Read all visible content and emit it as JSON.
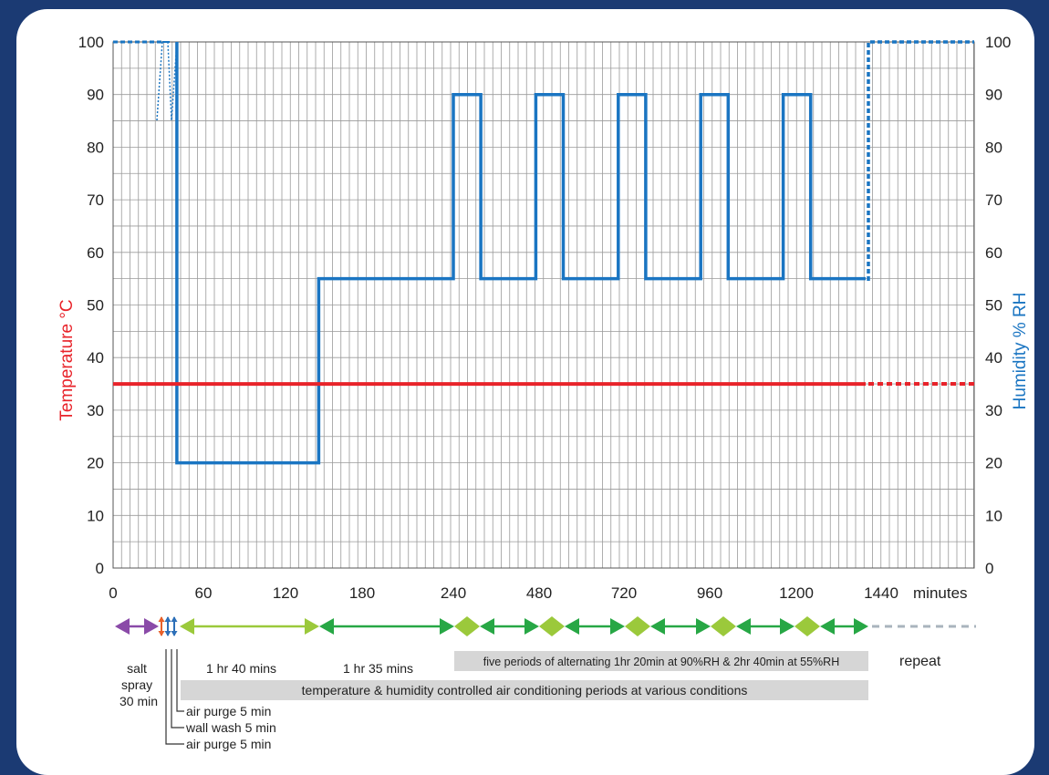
{
  "chart_data": {
    "type": "line",
    "ylabel_left": "Temperature °C",
    "ylabel_right": "Humidity % RH",
    "xlabel": "minutes",
    "x_tick_labels": [
      "0",
      "60",
      "120",
      "180",
      "240",
      "480",
      "720",
      "960",
      "1200",
      "1440"
    ],
    "y_ticks": [
      0,
      10,
      20,
      30,
      40,
      50,
      60,
      70,
      80,
      90,
      100
    ],
    "ylim": [
      0,
      100
    ],
    "series": [
      {
        "name": "Humidity % RH",
        "color": "#1a75c2",
        "style": "solid",
        "points": [
          [
            45,
            100
          ],
          [
            45,
            20
          ],
          [
            145,
            20
          ],
          [
            145,
            55
          ],
          [
            240,
            55
          ],
          [
            240,
            90
          ],
          [
            320,
            90
          ],
          [
            320,
            55
          ],
          [
            480,
            55
          ],
          [
            480,
            90
          ],
          [
            560,
            90
          ],
          [
            560,
            55
          ],
          [
            720,
            55
          ],
          [
            720,
            90
          ],
          [
            800,
            90
          ],
          [
            800,
            55
          ],
          [
            960,
            55
          ],
          [
            960,
            90
          ],
          [
            1040,
            90
          ],
          [
            1040,
            55
          ],
          [
            1200,
            55
          ],
          [
            1200,
            90
          ],
          [
            1280,
            90
          ],
          [
            1280,
            55
          ],
          [
            1440,
            55
          ]
        ]
      },
      {
        "name": "Temperature °C",
        "color": "#e8232a",
        "style": "solid",
        "points": [
          [
            0,
            35
          ],
          [
            1440,
            35
          ]
        ]
      }
    ],
    "grid": true
  },
  "phases": {
    "salt_spray": "salt\nspray\n30 min",
    "phase_1": "1 hr 40 mins",
    "phase_2": "1 hr 35 mins",
    "five_periods": "five periods of alternating 1hr 20min at 90%RH & 2hr 40min at 55%RH",
    "repeat": "repeat",
    "controlled_periods": "temperature & humidity controlled air conditioning periods at various conditions",
    "air_purge_1": "air purge 5 min",
    "wall_wash": "wall wash 5 min",
    "air_purge_2": "air purge 5 min"
  },
  "colors": {
    "humidity": "#1a75c2",
    "temperature": "#e8232a",
    "salt_spray": "#8a4aa8",
    "phase_light_green": "#9bc93b",
    "phase_green": "#27a745",
    "repeat": "#a9b4bd",
    "note_bg": "#d6d6d6"
  }
}
